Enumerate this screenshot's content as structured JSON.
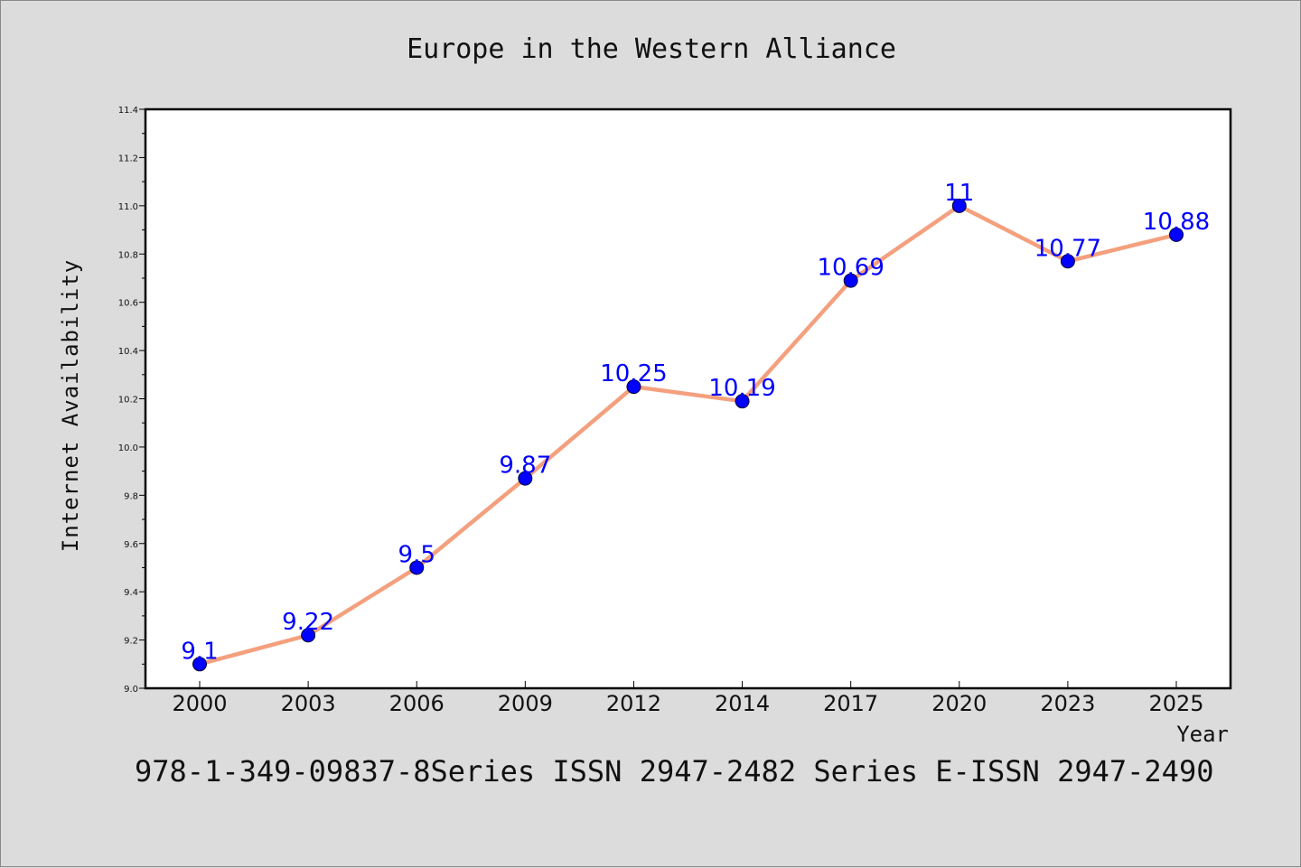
{
  "chart_data": {
    "type": "line",
    "title": "Europe in the Western Alliance",
    "xlabel": "Year",
    "ylabel": "Internet Availability",
    "categories": [
      "2000",
      "2003",
      "2006",
      "2009",
      "2012",
      "2014",
      "2017",
      "2020",
      "2023",
      "2025"
    ],
    "series": [
      {
        "values": [
          9.1,
          9.22,
          9.5,
          9.87,
          10.25,
          10.19,
          10.69,
          11,
          10.77,
          10.88
        ],
        "labels": [
          "9.1",
          "9.22",
          "9.5",
          "9.87",
          "10.25",
          "10.19",
          "10.69",
          "11",
          "10.77",
          "10.88"
        ],
        "line_color": "#f4a07e",
        "marker_color": "#0000ff"
      }
    ],
    "ylim": [
      9.0,
      11.4
    ],
    "yticks": [
      "9.0",
      "9.2",
      "9.4",
      "9.6",
      "9.8",
      "10.0",
      "10.2",
      "10.4",
      "10.6",
      "10.8",
      "11.0",
      "11.2",
      "11.4"
    ],
    "grid": false,
    "legend": "none"
  },
  "footer": {
    "text": "978-1-349-09837-8Series ISSN 2947-2482 Series E-ISSN 2947-2490"
  }
}
